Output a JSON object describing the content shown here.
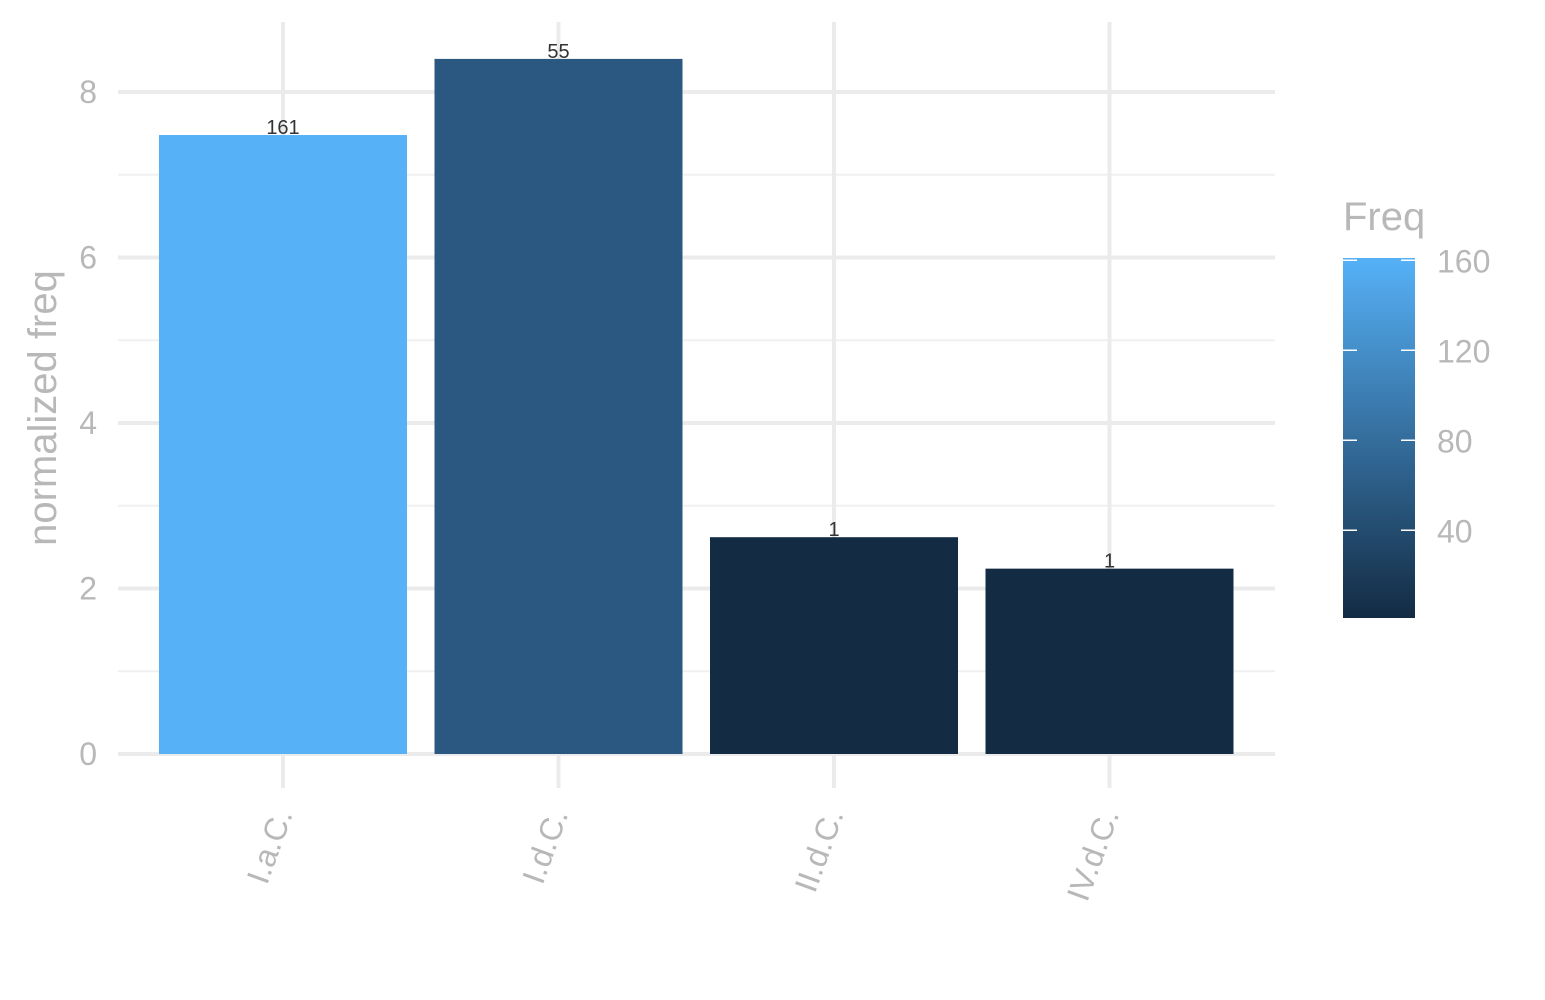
{
  "chart_data": {
    "type": "bar",
    "categories": [
      "I.a.C.",
      "I.d.C.",
      "II.d.C.",
      "IV.d.C."
    ],
    "values": [
      7.48,
      8.4,
      2.62,
      2.24
    ],
    "data_labels": [
      "161",
      "55",
      "1",
      "1"
    ],
    "fill_values": [
      161,
      55,
      1,
      1
    ],
    "xlabel": "",
    "ylabel": "normalized freq",
    "ylim": [
      0,
      8.8
    ],
    "yticks": [
      0,
      2,
      4,
      6,
      8
    ],
    "yticks_labels": [
      "0",
      "2",
      "4",
      "6",
      "8"
    ],
    "grid": true,
    "legend": {
      "title": "Freq",
      "placement": "right",
      "range": [
        1,
        161
      ],
      "ticks": [
        40,
        80,
        120,
        160
      ],
      "ticks_labels": [
        "40",
        "80",
        "120",
        "160"
      ],
      "color_low": "#132b43",
      "color_high": "#56b1f7"
    }
  }
}
